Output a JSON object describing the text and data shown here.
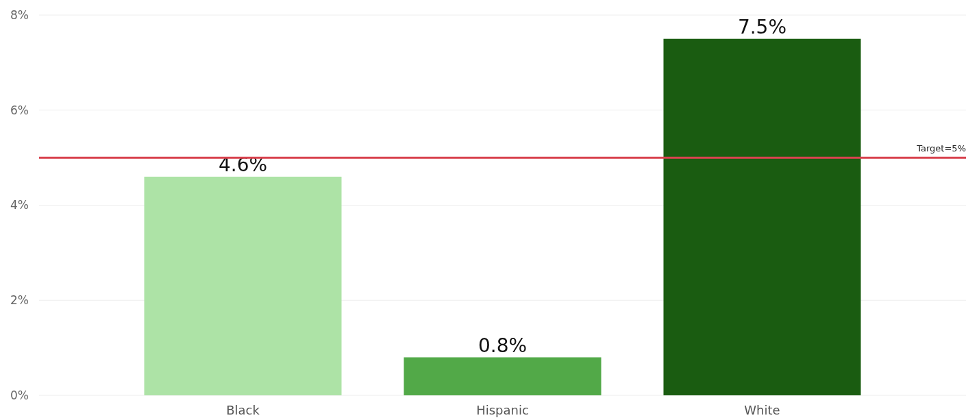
{
  "chart_data": {
    "type": "bar",
    "categories": [
      "Black",
      "Hispanic",
      "White"
    ],
    "values": [
      4.6,
      0.8,
      7.5
    ],
    "colors": [
      "#ade3a6",
      "#52a948",
      "#1a5c11"
    ],
    "value_labels": [
      "4.6%",
      "0.8%",
      "7.5%"
    ],
    "ylim": [
      0,
      8
    ],
    "yticks": [
      {
        "value": 0,
        "label": "0%"
      },
      {
        "value": 2,
        "label": "2%"
      },
      {
        "value": 4,
        "label": "4%"
      },
      {
        "value": 6,
        "label": "6%"
      },
      {
        "value": 8,
        "label": "8%"
      }
    ],
    "grid": "y",
    "ref_lines": [
      {
        "axis": "y",
        "value": 5,
        "label": "Target=5%",
        "color": "#d9434f"
      }
    ]
  }
}
